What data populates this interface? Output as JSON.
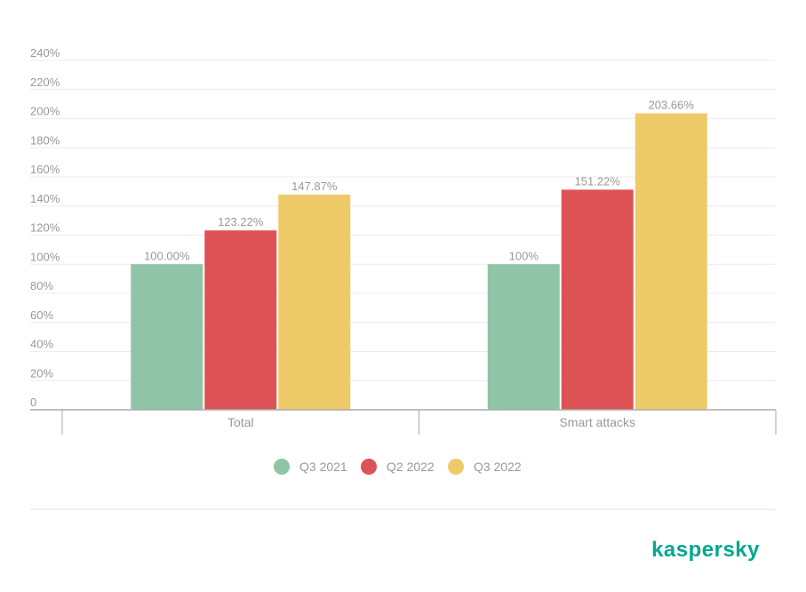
{
  "chart_data": {
    "type": "bar",
    "categories": [
      "Total",
      "Smart attacks"
    ],
    "series": [
      {
        "name": "Q3 2021",
        "values": [
          100.0,
          100.0
        ],
        "labels": [
          "100.00%",
          "100%"
        ],
        "color": "#8fc4a6"
      },
      {
        "name": "Q2 2022",
        "values": [
          123.22,
          151.22
        ],
        "labels": [
          "123.22%",
          "151.22%"
        ],
        "color": "#dd5254"
      },
      {
        "name": "Q3 2022",
        "values": [
          147.87,
          203.66
        ],
        "labels": [
          "147.87%",
          "203.66%"
        ],
        "color": "#efca68"
      }
    ],
    "ylim": [
      0,
      240
    ],
    "yticks": [
      0,
      20,
      40,
      60,
      80,
      100,
      120,
      140,
      160,
      180,
      200,
      220,
      240
    ],
    "ytick_labels": [
      "0",
      "20%",
      "40%",
      "60%",
      "80%",
      "100%",
      "120%",
      "140%",
      "160%",
      "180%",
      "200%",
      "220%",
      "240%"
    ],
    "grid": true,
    "legend_position": "bottom-center"
  },
  "brand": {
    "logo_text": "kaspersky",
    "color": "#00a88e"
  }
}
